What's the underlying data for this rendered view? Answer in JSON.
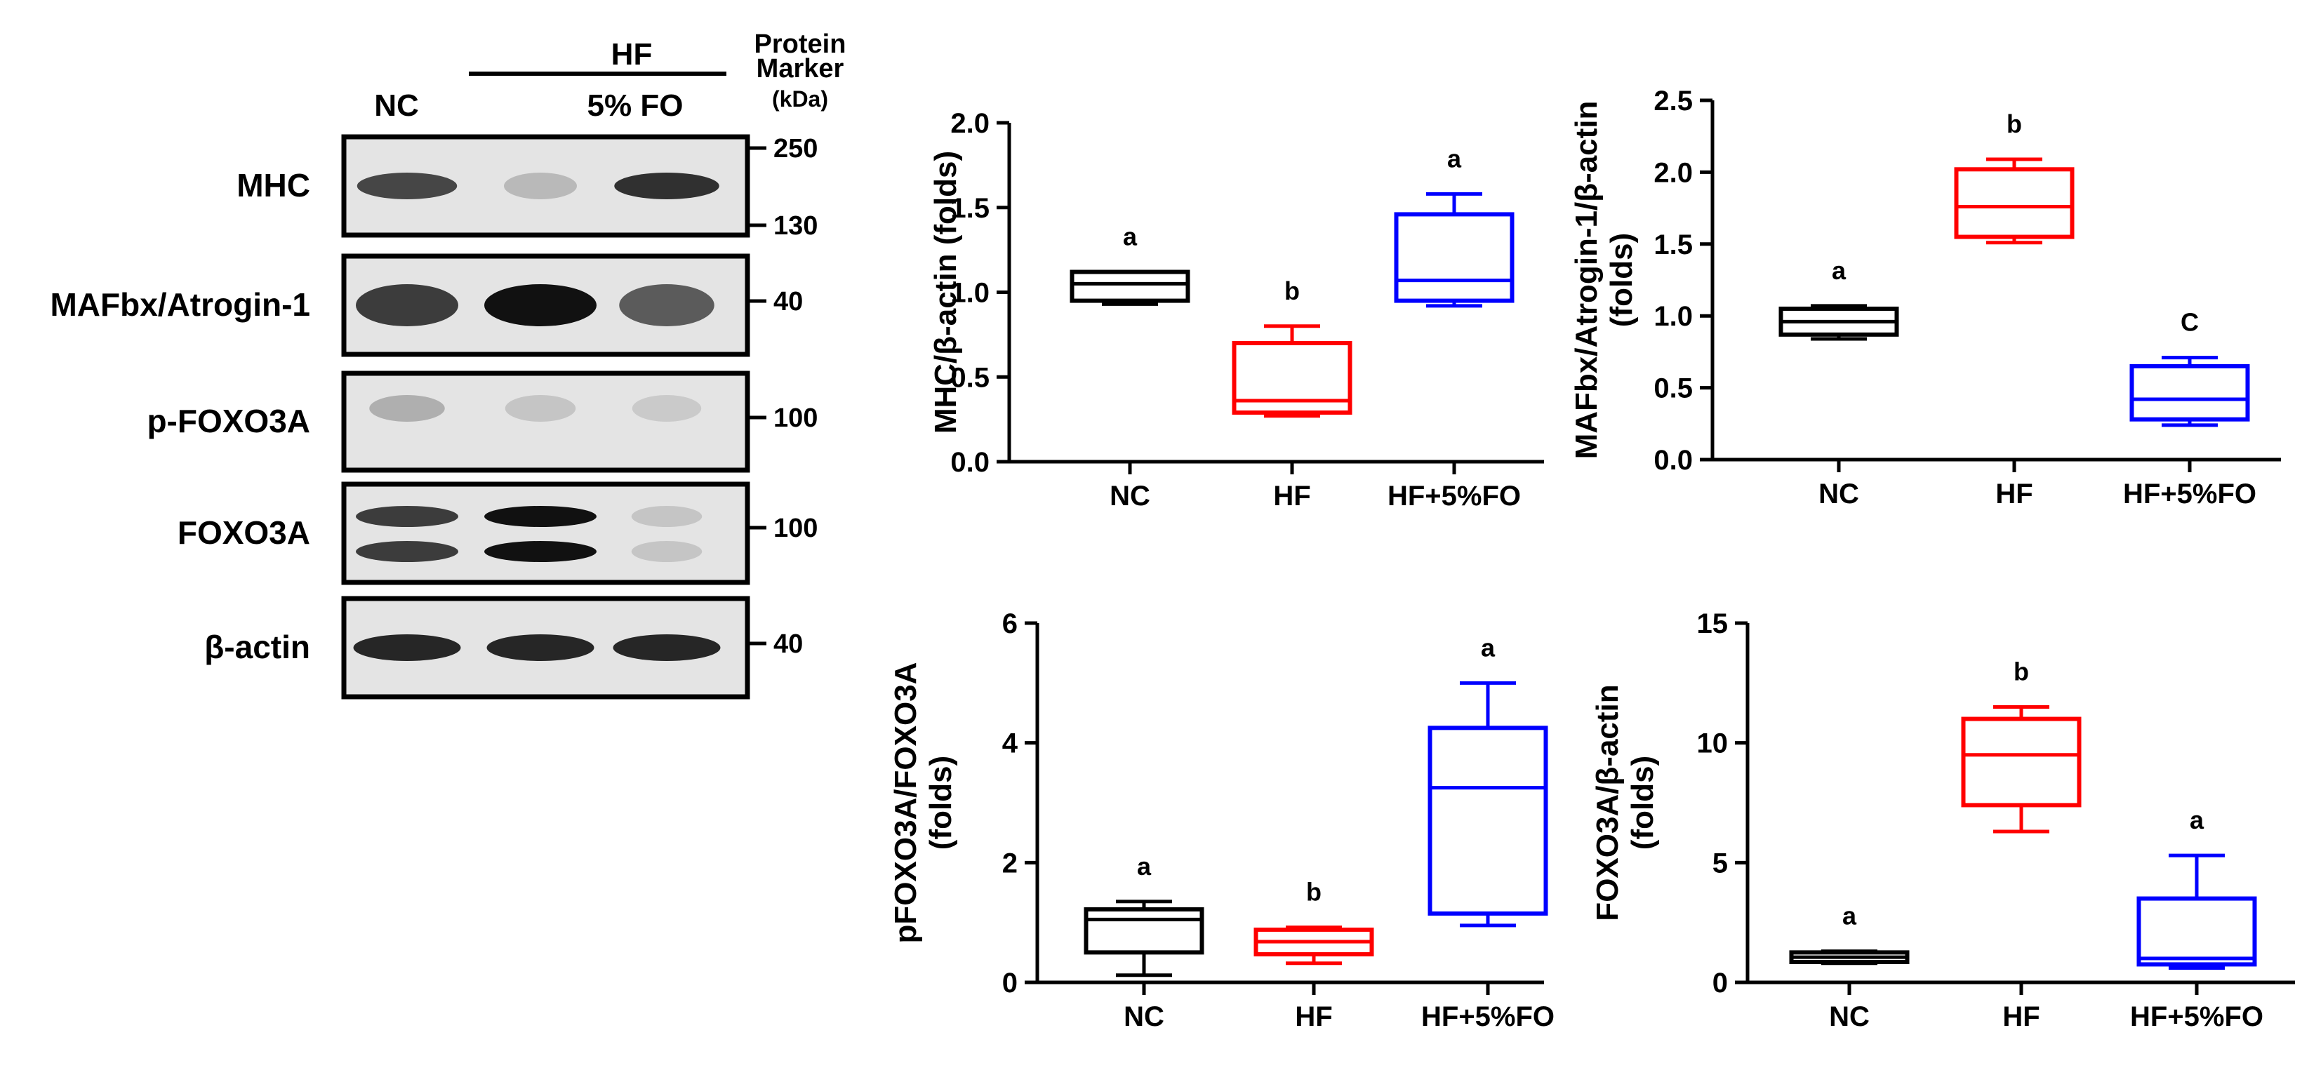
{
  "western_blot": {
    "lanes": [
      "NC",
      "",
      "5% FO"
    ],
    "hf_label": "HF",
    "marker_title": [
      "Protein",
      "Marker",
      "(kDa)"
    ],
    "rows": [
      {
        "name": "MHC",
        "markers": [
          "250",
          "130"
        ],
        "intensity": [
          0.75,
          0.2,
          0.85
        ],
        "doublet": false
      },
      {
        "name": "MAFbx/Atrogin-1",
        "markers": [
          "40"
        ],
        "intensity": [
          0.8,
          1.0,
          0.65
        ],
        "doublet": false
      },
      {
        "name": "p-FOXO3A",
        "markers": [
          "100"
        ],
        "intensity": [
          0.25,
          0.15,
          0.12
        ],
        "doublet": false
      },
      {
        "name": "FOXO3A",
        "markers": [
          "100"
        ],
        "intensity": [
          0.8,
          1.0,
          0.15
        ],
        "doublet": true
      },
      {
        "name": "β-actin",
        "markers": [
          "40"
        ],
        "intensity": [
          0.9,
          0.9,
          0.9
        ],
        "doublet": false
      }
    ],
    "colors": {
      "band": "#111111",
      "background": "#e4e4e4"
    }
  },
  "chart_data": [
    {
      "type": "box",
      "ylabel": [
        "MHC/β-actin (folds)"
      ],
      "ylim": [
        0,
        2.0
      ],
      "yticks": [
        "0.0",
        "0.5",
        "1.0",
        "1.5",
        "2.0"
      ],
      "categories": [
        "NC",
        "HF",
        "HF+5%FO"
      ],
      "boxes": [
        {
          "min": 0.93,
          "q1": 0.95,
          "median": 1.05,
          "q3": 1.12,
          "max": 1.12,
          "label": "a",
          "color": "#000000"
        },
        {
          "min": 0.27,
          "q1": 0.29,
          "median": 0.36,
          "q3": 0.7,
          "max": 0.8,
          "label": "b",
          "color": "#ff0000"
        },
        {
          "min": 0.92,
          "q1": 0.95,
          "median": 1.07,
          "q3": 1.46,
          "max": 1.58,
          "label": "a",
          "color": "#0000ff"
        }
      ]
    },
    {
      "type": "box",
      "ylabel": [
        "MAFbx/Atrogin-1/β-actin",
        "(folds)"
      ],
      "ylim": [
        0,
        2.5
      ],
      "yticks": [
        "0.0",
        "0.5",
        "1.0",
        "1.5",
        "2.0",
        "2.5"
      ],
      "categories": [
        "NC",
        "HF",
        "HF+5%FO"
      ],
      "boxes": [
        {
          "min": 0.84,
          "q1": 0.87,
          "median": 0.96,
          "q3": 1.05,
          "max": 1.07,
          "label": "a",
          "color": "#000000"
        },
        {
          "min": 1.51,
          "q1": 1.55,
          "median": 1.76,
          "q3": 2.02,
          "max": 2.09,
          "label": "b",
          "color": "#ff0000"
        },
        {
          "min": 0.24,
          "q1": 0.28,
          "median": 0.42,
          "q3": 0.65,
          "max": 0.71,
          "label": "C",
          "color": "#0000ff"
        }
      ]
    },
    {
      "type": "box",
      "ylabel": [
        "pFOXO3A/FOXO3A",
        "(folds)"
      ],
      "ylim": [
        0,
        6
      ],
      "yticks": [
        "0",
        "2",
        "4",
        "6"
      ],
      "categories": [
        "NC",
        "HF",
        "HF+5%FO"
      ],
      "boxes": [
        {
          "min": 0.12,
          "q1": 0.5,
          "median": 1.05,
          "q3": 1.22,
          "max": 1.35,
          "label": "a",
          "color": "#000000"
        },
        {
          "min": 0.32,
          "q1": 0.47,
          "median": 0.68,
          "q3": 0.88,
          "max": 0.92,
          "label": "b",
          "color": "#ff0000"
        },
        {
          "min": 0.95,
          "q1": 1.15,
          "median": 3.25,
          "q3": 4.25,
          "max": 5.0,
          "label": "a",
          "color": "#0000ff"
        }
      ]
    },
    {
      "type": "box",
      "ylabel": [
        "FOXO3A/β-actin",
        "(folds)"
      ],
      "ylim": [
        0,
        15
      ],
      "yticks": [
        "0",
        "5",
        "10",
        "15"
      ],
      "categories": [
        "NC",
        "HF",
        "HF+5%FO"
      ],
      "boxes": [
        {
          "min": 0.8,
          "q1": 0.85,
          "median": 1.05,
          "q3": 1.25,
          "max": 1.3,
          "label": "a",
          "color": "#000000"
        },
        {
          "min": 6.3,
          "q1": 7.4,
          "median": 9.5,
          "q3": 11.0,
          "max": 11.5,
          "label": "b",
          "color": "#ff0000"
        },
        {
          "min": 0.6,
          "q1": 0.75,
          "median": 1.0,
          "q3": 3.5,
          "max": 5.3,
          "label": "a",
          "color": "#0000ff"
        }
      ]
    }
  ]
}
